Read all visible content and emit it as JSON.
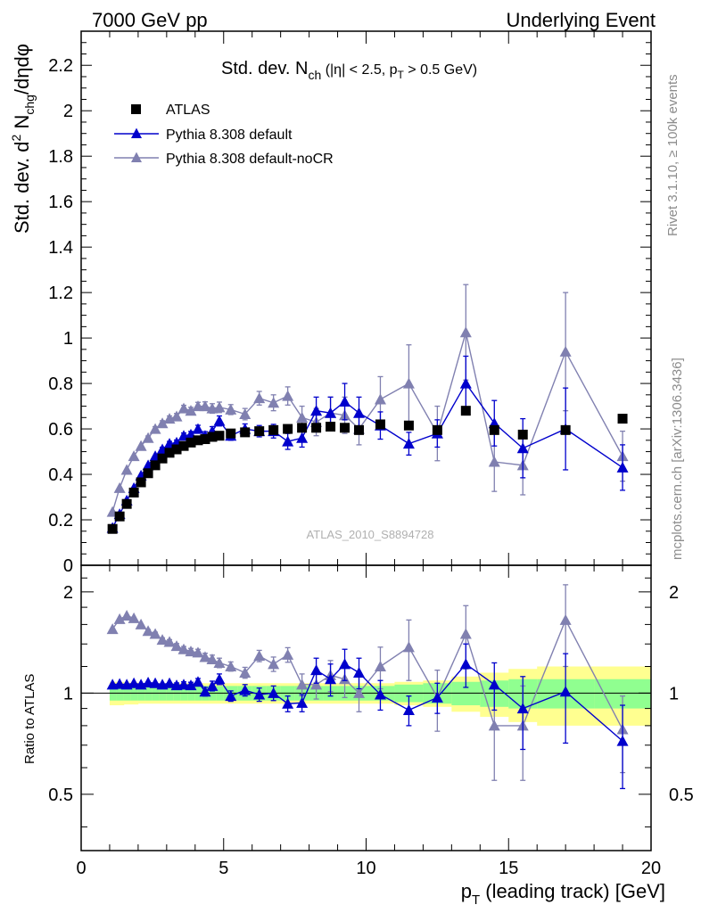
{
  "header": {
    "left_label": "7000 GeV pp",
    "right_label": "Underlying Event"
  },
  "side_notes": {
    "rivet": "Rivet 3.1.10, ≥ 100k events",
    "mcplots": "mcplots.cern.ch [arXiv:1306.3436]"
  },
  "watermark": "ATLAS_2010_S8894728",
  "chart_data": [
    {
      "type": "scatter",
      "panel": "main",
      "title": "Std. dev. N_ch (|η| < 2.5, p_T > 0.5 GeV)",
      "title_parts": {
        "main": "Std. dev. N",
        "sub": "ch",
        "rest_a": " (|η| < 2.5, p",
        "sub2": "T",
        "rest_b": " > 0.5 GeV)"
      },
      "ylabel": "Std. dev. d² N_chg/dηdφ",
      "ylabel_parts": {
        "a": "Std. dev. d",
        "sup": "2",
        "b": " N",
        "sub": "chg",
        "c": "/dηdφ"
      },
      "xlim": [
        0,
        20
      ],
      "ylim": [
        0,
        2.35
      ],
      "yticks": [
        "0",
        "0.2",
        "0.4",
        "0.6",
        "0.8",
        "1",
        "1.2",
        "1.4",
        "1.6",
        "1.8",
        "2",
        "2.2"
      ],
      "legend_position": "top-left",
      "series": [
        {
          "name": "ATLAS",
          "marker": "square",
          "color": "#000000",
          "x": [
            1.1,
            1.35,
            1.6,
            1.85,
            2.1,
            2.35,
            2.6,
            2.85,
            3.1,
            3.35,
            3.6,
            3.85,
            4.1,
            4.35,
            4.6,
            4.85,
            5.25,
            5.75,
            6.25,
            6.75,
            7.25,
            7.75,
            8.25,
            8.75,
            9.25,
            9.75,
            10.5,
            11.5,
            12.5,
            13.5,
            14.5,
            15.5,
            17,
            19
          ],
          "y": [
            0.16,
            0.215,
            0.27,
            0.32,
            0.365,
            0.405,
            0.44,
            0.47,
            0.495,
            0.51,
            0.525,
            0.54,
            0.55,
            0.555,
            0.565,
            0.57,
            0.58,
            0.585,
            0.59,
            0.595,
            0.6,
            0.605,
            0.605,
            0.61,
            0.605,
            0.595,
            0.62,
            0.615,
            0.595,
            0.68,
            0.595,
            0.575,
            0.595,
            0.645
          ]
        },
        {
          "name": "Pythia 8.308 default",
          "marker": "triangle",
          "color": "#0000cc",
          "x": [
            1.1,
            1.35,
            1.6,
            1.85,
            2.1,
            2.35,
            2.6,
            2.85,
            3.1,
            3.35,
            3.6,
            3.85,
            4.1,
            4.35,
            4.6,
            4.85,
            5.25,
            5.75,
            6.25,
            6.75,
            7.25,
            7.75,
            8.25,
            8.75,
            9.25,
            9.75,
            10.5,
            11.5,
            12.5,
            13.5,
            14.5,
            15.5,
            17,
            19
          ],
          "y": [
            0.165,
            0.225,
            0.285,
            0.34,
            0.395,
            0.44,
            0.48,
            0.51,
            0.535,
            0.54,
            0.57,
            0.575,
            0.6,
            0.57,
            0.59,
            0.635,
            0.57,
            0.6,
            0.59,
            0.59,
            0.545,
            0.56,
            0.68,
            0.67,
            0.72,
            0.67,
            0.615,
            0.535,
            0.58,
            0.8,
            0.625,
            0.515,
            0.6,
            0.43
          ],
          "yerr": [
            0.005,
            0.005,
            0.005,
            0.006,
            0.006,
            0.007,
            0.008,
            0.009,
            0.01,
            0.011,
            0.012,
            0.014,
            0.016,
            0.018,
            0.02,
            0.022,
            0.02,
            0.022,
            0.025,
            0.03,
            0.035,
            0.04,
            0.06,
            0.07,
            0.08,
            0.07,
            0.06,
            0.05,
            0.06,
            0.12,
            0.1,
            0.13,
            0.18,
            0.1
          ]
        },
        {
          "name": "Pythia 8.308 default-noCR",
          "marker": "triangle",
          "color": "#8080b0",
          "x": [
            1.1,
            1.35,
            1.6,
            1.85,
            2.1,
            2.35,
            2.6,
            2.85,
            3.1,
            3.35,
            3.6,
            3.85,
            4.1,
            4.35,
            4.6,
            4.85,
            5.25,
            5.75,
            6.25,
            6.75,
            7.25,
            7.75,
            8.25,
            8.75,
            9.25,
            9.75,
            10.5,
            11.5,
            12.5,
            13.5,
            14.5,
            15.5,
            17,
            19
          ],
          "y": [
            0.235,
            0.34,
            0.42,
            0.48,
            0.525,
            0.56,
            0.6,
            0.625,
            0.645,
            0.655,
            0.69,
            0.68,
            0.7,
            0.7,
            0.69,
            0.695,
            0.685,
            0.665,
            0.735,
            0.715,
            0.745,
            0.65,
            0.63,
            0.67,
            0.66,
            0.6,
            0.73,
            0.8,
            0.58,
            1.025,
            0.455,
            0.44,
            0.94,
            0.48
          ],
          "yerr": [
            0.005,
            0.006,
            0.007,
            0.008,
            0.008,
            0.009,
            0.01,
            0.011,
            0.012,
            0.013,
            0.014,
            0.015,
            0.017,
            0.019,
            0.021,
            0.023,
            0.022,
            0.025,
            0.03,
            0.035,
            0.04,
            0.05,
            0.06,
            0.07,
            0.08,
            0.07,
            0.1,
            0.17,
            0.12,
            0.21,
            0.13,
            0.13,
            0.26,
            0.11
          ]
        }
      ]
    },
    {
      "type": "scatter",
      "panel": "ratio",
      "ylabel": "Ratio to ATLAS",
      "xlabel": "p_T (leading track) [GeV]",
      "xlabel_parts": {
        "a": "p",
        "sub": "T",
        "b": " (leading track) [GeV]"
      },
      "xlim": [
        0,
        20
      ],
      "ylim": [
        0.34,
        2.4
      ],
      "yscale": "log",
      "xticks": [
        "0",
        "5",
        "10",
        "15",
        "20"
      ],
      "yticks": [
        "0.5",
        "1",
        "2"
      ],
      "reference_line": 1,
      "uncertainty_bands": {
        "colors": {
          "inner": "#90ff90",
          "outer": "#ffff90"
        },
        "x_edges": [
          1.0,
          1.25,
          1.5,
          1.75,
          2.0,
          2.25,
          2.5,
          2.75,
          3.0,
          3.25,
          3.5,
          3.75,
          4.0,
          4.25,
          4.5,
          4.75,
          5.0,
          5.5,
          6.0,
          6.5,
          7.0,
          7.5,
          8.0,
          8.5,
          9.0,
          9.5,
          10.0,
          11.0,
          12.0,
          13.0,
          14.0,
          15.0,
          16.0,
          18.0,
          20.0
        ],
        "inner": [
          0.05,
          0.05,
          0.05,
          0.05,
          0.05,
          0.05,
          0.05,
          0.05,
          0.05,
          0.05,
          0.05,
          0.05,
          0.05,
          0.05,
          0.05,
          0.05,
          0.05,
          0.05,
          0.05,
          0.05,
          0.05,
          0.05,
          0.05,
          0.05,
          0.05,
          0.05,
          0.05,
          0.06,
          0.07,
          0.08,
          0.09,
          0.1,
          0.1,
          0.1
        ],
        "outer": [
          0.08,
          0.08,
          0.075,
          0.075,
          0.07,
          0.07,
          0.07,
          0.07,
          0.07,
          0.07,
          0.07,
          0.07,
          0.07,
          0.07,
          0.07,
          0.07,
          0.07,
          0.07,
          0.07,
          0.07,
          0.07,
          0.07,
          0.07,
          0.07,
          0.07,
          0.07,
          0.07,
          0.08,
          0.09,
          0.12,
          0.15,
          0.18,
          0.2,
          0.2
        ]
      },
      "series": [
        {
          "name": "Pythia 8.308 default",
          "x": [
            1.1,
            1.35,
            1.6,
            1.85,
            2.1,
            2.35,
            2.6,
            2.85,
            3.1,
            3.35,
            3.6,
            3.85,
            4.1,
            4.35,
            4.6,
            4.85,
            5.25,
            5.75,
            6.25,
            6.75,
            7.25,
            7.75,
            8.25,
            8.75,
            9.25,
            9.75,
            10.5,
            11.5,
            12.5,
            13.5,
            14.5,
            15.5,
            17,
            19
          ],
          "y": [
            1.06,
            1.065,
            1.06,
            1.07,
            1.06,
            1.075,
            1.07,
            1.06,
            1.07,
            1.055,
            1.06,
            1.055,
            1.08,
            1.01,
            1.05,
            1.1,
            0.98,
            1.02,
            0.99,
            1.0,
            0.93,
            0.935,
            1.17,
            1.1,
            1.22,
            1.15,
            0.99,
            0.89,
            0.97,
            1.22,
            1.06,
            0.9,
            1.01,
            0.72
          ],
          "yerr": [
            0.01,
            0.01,
            0.01,
            0.01,
            0.01,
            0.01,
            0.012,
            0.014,
            0.015,
            0.017,
            0.02,
            0.022,
            0.025,
            0.03,
            0.035,
            0.04,
            0.035,
            0.04,
            0.045,
            0.05,
            0.05,
            0.055,
            0.1,
            0.12,
            0.13,
            0.12,
            0.1,
            0.09,
            0.1,
            0.18,
            0.17,
            0.22,
            0.3,
            0.2
          ]
        },
        {
          "name": "Pythia 8.308 default-noCR",
          "x": [
            1.1,
            1.35,
            1.6,
            1.85,
            2.1,
            2.35,
            2.6,
            2.85,
            3.1,
            3.35,
            3.6,
            3.85,
            4.1,
            4.35,
            4.6,
            4.85,
            5.25,
            5.75,
            6.25,
            6.75,
            7.25,
            7.75,
            8.25,
            8.75,
            9.25,
            9.75,
            10.5,
            11.5,
            12.5,
            13.5,
            14.5,
            15.5,
            17,
            19
          ],
          "y": [
            1.55,
            1.66,
            1.7,
            1.67,
            1.6,
            1.53,
            1.5,
            1.44,
            1.42,
            1.38,
            1.35,
            1.33,
            1.32,
            1.28,
            1.26,
            1.23,
            1.2,
            1.15,
            1.29,
            1.22,
            1.3,
            1.06,
            1.06,
            1.13,
            1.1,
            1.0,
            1.2,
            1.37,
            0.97,
            1.5,
            0.8,
            0.8,
            1.65,
            0.78
          ],
          "yerr": [
            0.01,
            0.012,
            0.013,
            0.014,
            0.015,
            0.016,
            0.018,
            0.02,
            0.022,
            0.024,
            0.026,
            0.028,
            0.03,
            0.034,
            0.037,
            0.04,
            0.038,
            0.043,
            0.05,
            0.06,
            0.065,
            0.08,
            0.1,
            0.12,
            0.13,
            0.12,
            0.17,
            0.28,
            0.2,
            0.32,
            0.25,
            0.25,
            0.45,
            0.2
          ]
        }
      ]
    }
  ]
}
